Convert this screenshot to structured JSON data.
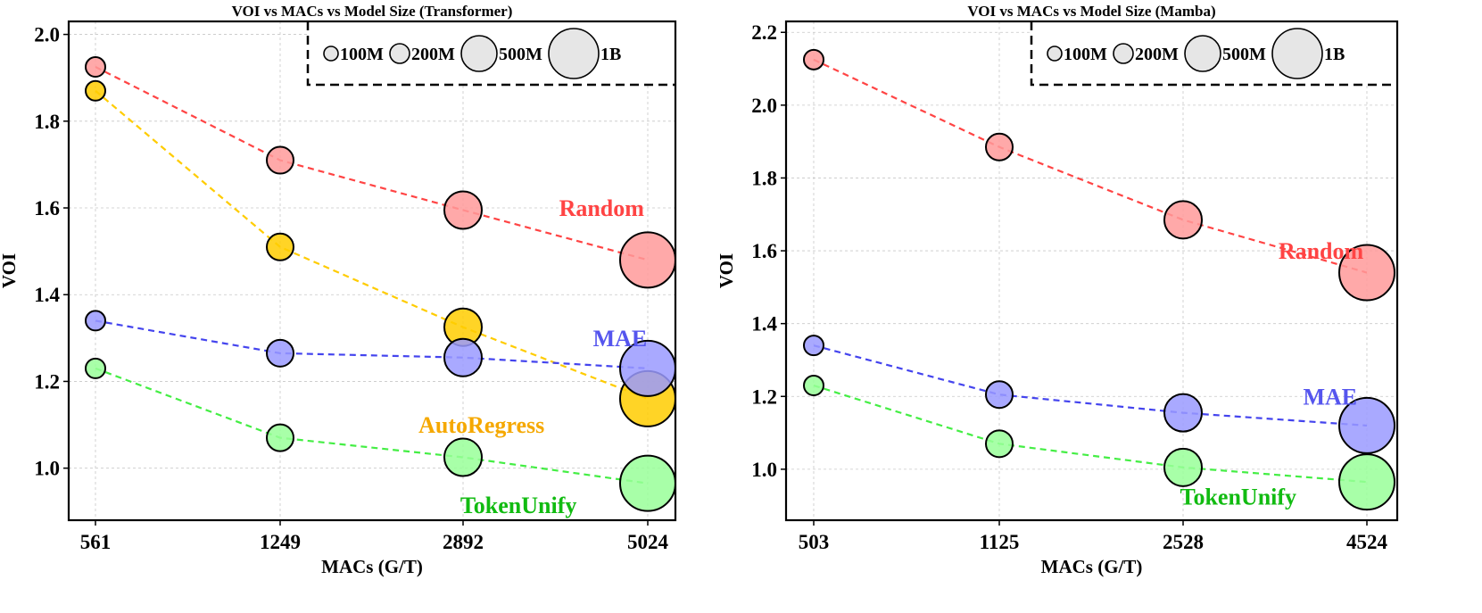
{
  "chart_data": [
    {
      "type": "scatter",
      "title": "VOI vs MACs vs Model Size (Transformer)",
      "xlabel": "MACs (G/T)",
      "ylabel": "VOI",
      "x_ticks": [
        "561",
        "1249",
        "2892",
        "5024"
      ],
      "y_ticks": [
        "1.0",
        "1.2",
        "1.4",
        "1.6",
        "1.8",
        "2.0"
      ],
      "ylim": [
        0.88,
        2.03
      ],
      "grid": true,
      "legend": {
        "placement": "top-right",
        "title_note": "bubble size = model size",
        "entries": [
          {
            "label": "100M",
            "size": "100M"
          },
          {
            "label": "200M",
            "size": "200M"
          },
          {
            "label": "500M",
            "size": "500M"
          },
          {
            "label": "1B",
            "size": "1B"
          }
        ]
      },
      "sizes": [
        "100M",
        "200M",
        "500M",
        "1B"
      ],
      "series": [
        {
          "name": "Random",
          "color": "#ff4444",
          "fill": "#ff9a9a",
          "values": [
            1.925,
            1.71,
            1.595,
            1.48
          ],
          "label_at": [
            1.6,
            2.75
          ]
        },
        {
          "name": "AutoRegress",
          "color": "#ffcc00",
          "fill": "#ffcc00",
          "label_color": "#f5a800",
          "values": [
            1.87,
            1.51,
            1.325,
            1.16
          ],
          "label_at": [
            1.1,
            2.1
          ]
        },
        {
          "name": "MAE",
          "color": "#4444ee",
          "fill": "#9a9aff",
          "label_color": "#5555ee",
          "values": [
            1.34,
            1.265,
            1.255,
            1.23
          ],
          "label_at": [
            1.3,
            2.85
          ]
        },
        {
          "name": "TokenUnify",
          "color": "#44ee44",
          "fill": "#99ff99",
          "label_color": "#11bb11",
          "values": [
            1.23,
            1.07,
            1.025,
            0.965
          ],
          "label_at": [
            0.915,
            2.3
          ]
        }
      ]
    },
    {
      "type": "scatter",
      "title": "VOI vs MACs vs Model Size (Mamba)",
      "xlabel": "MACs (G/T)",
      "ylabel": "VOI",
      "x_ticks": [
        "503",
        "1125",
        "2528",
        "4524"
      ],
      "y_ticks": [
        "1.0",
        "1.2",
        "1.4",
        "1.6",
        "1.8",
        "2.0",
        "2.2"
      ],
      "ylim": [
        0.86,
        2.23
      ],
      "grid": true,
      "legend": {
        "placement": "top-right",
        "title_note": "bubble size = model size",
        "entries": [
          {
            "label": "100M",
            "size": "100M"
          },
          {
            "label": "200M",
            "size": "200M"
          },
          {
            "label": "500M",
            "size": "500M"
          },
          {
            "label": "1B",
            "size": "1B"
          }
        ]
      },
      "sizes": [
        "100M",
        "200M",
        "500M",
        "1B"
      ],
      "series": [
        {
          "name": "Random",
          "color": "#ff4444",
          "fill": "#ff9a9a",
          "values": [
            2.125,
            1.885,
            1.685,
            1.54
          ],
          "label_at": [
            1.6,
            2.75
          ]
        },
        {
          "name": "MAE",
          "color": "#4444ee",
          "fill": "#9a9aff",
          "label_color": "#5555ee",
          "values": [
            1.34,
            1.205,
            1.155,
            1.12
          ],
          "label_at": [
            1.2,
            2.8
          ]
        },
        {
          "name": "TokenUnify",
          "color": "#44ee44",
          "fill": "#99ff99",
          "label_color": "#11bb11",
          "values": [
            1.23,
            1.07,
            1.005,
            0.965
          ],
          "label_at": [
            0.925,
            2.3
          ]
        }
      ]
    }
  ]
}
